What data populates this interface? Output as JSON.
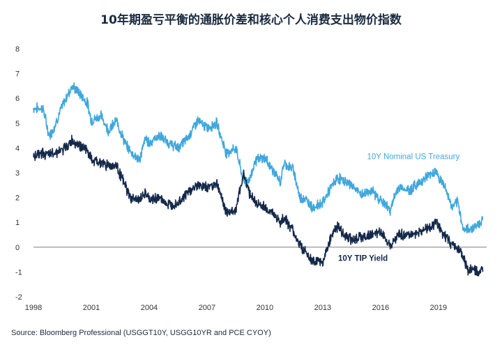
{
  "chart_data": {
    "type": "line",
    "title": "10年期盈亏平衡的通胀价差和核心个人消费支出物价指数",
    "source": "Source: Bloomberg Professional (USGGT10Y, USGG10YR and PCE CYOY)",
    "xlim": [
      1998,
      2021.5
    ],
    "ylim": [
      -2,
      8
    ],
    "x_ticks": [
      1998,
      2001,
      2004,
      2007,
      2010,
      2013,
      2016,
      2019
    ],
    "y_ticks": [
      -2,
      -1,
      0,
      1,
      2,
      3,
      4,
      5,
      6,
      7,
      8
    ],
    "zero_line": true,
    "grid": false,
    "colors": {
      "nominal": "#3fa7dc",
      "tip": "#14294a"
    },
    "series": [
      {
        "name": "10Y Nominal US Treasury",
        "color": "#3fa7dc",
        "x": [
          1998.0,
          1998.5,
          1998.8,
          1999.0,
          1999.5,
          2000.0,
          2000.4,
          2000.8,
          2001.0,
          2001.5,
          2001.9,
          2002.3,
          2002.8,
          2003.0,
          2003.5,
          2003.8,
          2004.0,
          2004.5,
          2005.0,
          2005.5,
          2006.0,
          2006.5,
          2007.0,
          2007.5,
          2008.0,
          2008.5,
          2008.9,
          2009.2,
          2009.5,
          2010.0,
          2010.5,
          2010.8,
          2011.0,
          2011.5,
          2011.8,
          2012.0,
          2012.5,
          2013.0,
          2013.5,
          2013.8,
          2014.0,
          2014.5,
          2015.0,
          2015.5,
          2016.0,
          2016.5,
          2016.9,
          2017.0,
          2017.5,
          2018.0,
          2018.5,
          2018.9,
          2019.0,
          2019.3,
          2019.7,
          2020.0,
          2020.3,
          2020.5,
          2020.8,
          2021.0,
          2021.3
        ],
        "values": [
          5.6,
          5.6,
          4.5,
          4.7,
          5.7,
          6.5,
          6.2,
          5.8,
          5.1,
          5.3,
          4.7,
          5.1,
          4.1,
          3.9,
          3.5,
          4.4,
          4.2,
          4.5,
          4.2,
          4.0,
          4.4,
          5.1,
          4.8,
          5.0,
          3.8,
          4.0,
          2.6,
          2.7,
          3.5,
          3.6,
          3.0,
          2.6,
          3.4,
          3.1,
          2.0,
          2.0,
          1.6,
          1.8,
          2.5,
          2.8,
          2.7,
          2.5,
          2.1,
          2.3,
          1.9,
          1.5,
          2.4,
          2.4,
          2.3,
          2.6,
          2.9,
          3.1,
          2.8,
          2.5,
          1.6,
          1.8,
          0.7,
          0.7,
          0.8,
          0.9,
          1.1
        ]
      },
      {
        "name": "10Y TIP Yield",
        "color": "#14294a",
        "x": [
          1998.0,
          1998.5,
          1998.8,
          1999.0,
          1999.5,
          2000.0,
          2000.4,
          2000.8,
          2001.0,
          2001.5,
          2001.9,
          2002.3,
          2002.8,
          2003.0,
          2003.5,
          2003.8,
          2004.0,
          2004.5,
          2005.0,
          2005.5,
          2006.0,
          2006.5,
          2007.0,
          2007.5,
          2008.0,
          2008.5,
          2008.9,
          2009.2,
          2009.5,
          2010.0,
          2010.5,
          2010.8,
          2011.0,
          2011.5,
          2011.8,
          2012.0,
          2012.5,
          2013.0,
          2013.5,
          2013.8,
          2014.0,
          2014.5,
          2015.0,
          2015.5,
          2016.0,
          2016.5,
          2016.9,
          2017.0,
          2017.5,
          2018.0,
          2018.5,
          2018.9,
          2019.0,
          2019.3,
          2019.7,
          2020.0,
          2020.3,
          2020.5,
          2020.8,
          2021.0,
          2021.3
        ],
        "values": [
          3.7,
          3.8,
          3.7,
          3.8,
          3.9,
          4.3,
          4.1,
          3.9,
          3.5,
          3.4,
          3.3,
          3.3,
          2.4,
          2.0,
          1.9,
          2.2,
          1.9,
          2.0,
          1.7,
          1.8,
          2.2,
          2.5,
          2.4,
          2.6,
          1.4,
          1.5,
          3.0,
          2.2,
          1.8,
          1.6,
          1.3,
          1.0,
          1.2,
          0.6,
          0.1,
          -0.1,
          -0.6,
          -0.6,
          0.6,
          0.8,
          0.6,
          0.3,
          0.4,
          0.5,
          0.6,
          0.1,
          0.5,
          0.5,
          0.5,
          0.6,
          0.8,
          1.0,
          0.8,
          0.5,
          0.1,
          0.0,
          -0.4,
          -0.9,
          -0.9,
          -1.0,
          -1.0
        ]
      }
    ],
    "annotations": [
      {
        "text": "10Y Nominal US Treasury",
        "x": 2015.3,
        "y": 3.55,
        "series": 0
      },
      {
        "text": "10Y TIP Yield",
        "x": 2013.8,
        "y": -0.55,
        "series": 1
      }
    ]
  }
}
